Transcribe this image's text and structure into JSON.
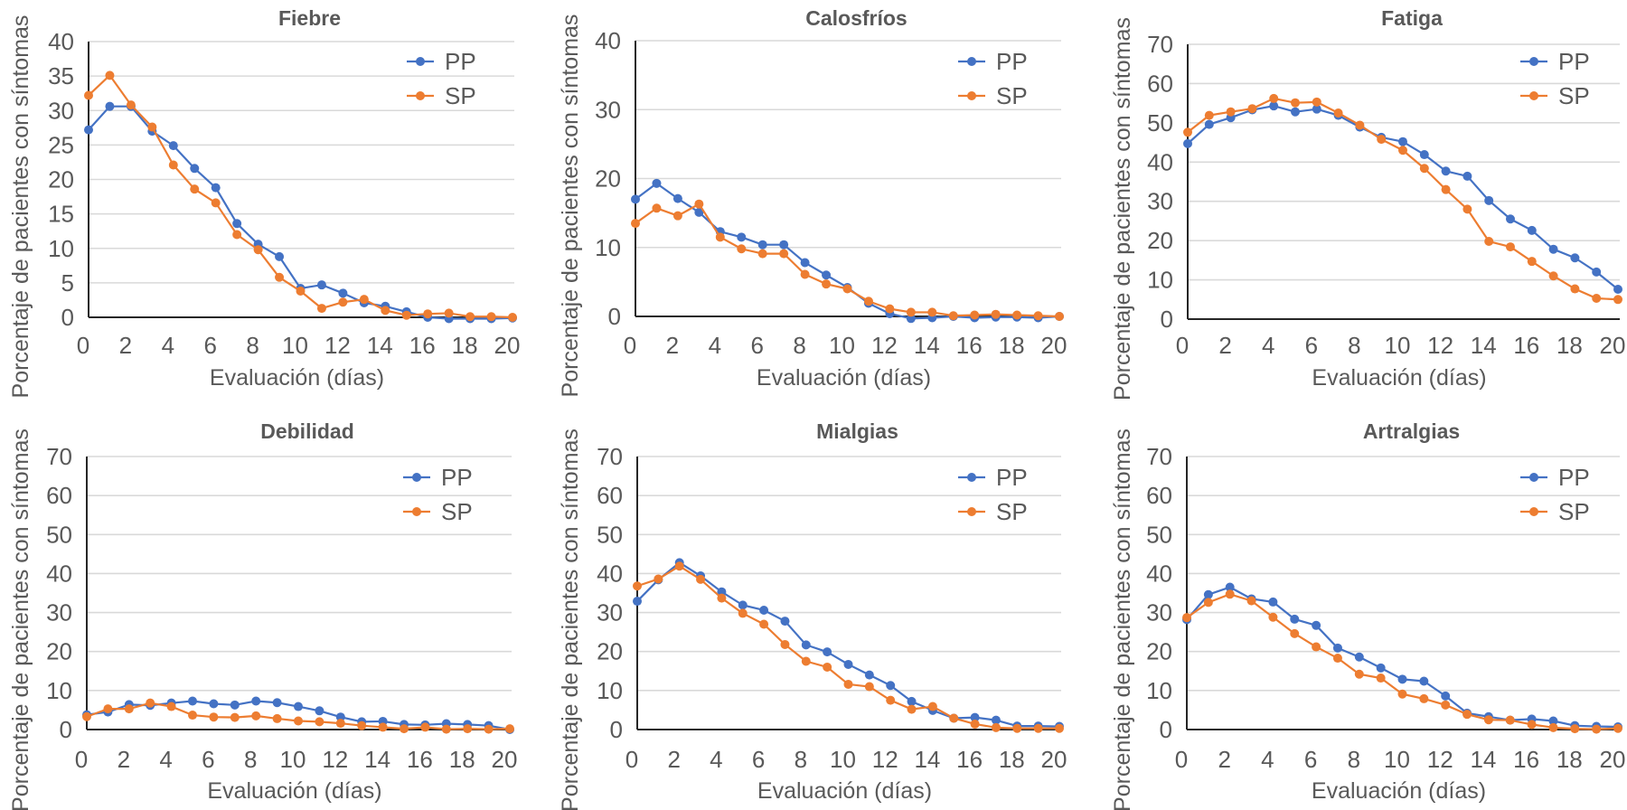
{
  "figure": {
    "ylabel": "Porcentaje de pacientes con síntomas",
    "xlabel": "Evaluación (días)",
    "colors": {
      "PP": "#4472C4",
      "SP": "#ED7D31",
      "text": "#595959",
      "grid": "#D9D9D9",
      "axis": "#262626"
    }
  },
  "chart_data": [
    {
      "type": "line",
      "title": "Fiebre",
      "xlabel": "Evaluación (días)",
      "ylabel": "Porcentaje de pacientes con síntomas",
      "x": [
        0,
        1,
        2,
        3,
        4,
        5,
        6,
        7,
        8,
        9,
        10,
        11,
        12,
        13,
        14,
        15,
        16,
        17,
        18,
        19,
        20
      ],
      "xticks": [
        0,
        2,
        4,
        6,
        8,
        10,
        12,
        14,
        16,
        18,
        20
      ],
      "xlim": [
        0,
        20
      ],
      "ylim": [
        0,
        40
      ],
      "yticks": [
        0,
        5,
        10,
        15,
        20,
        25,
        30,
        35,
        40
      ],
      "grid": true,
      "legend": "top-right",
      "series": [
        {
          "name": "PP",
          "values": [
            27.2,
            30.6,
            30.6,
            27.0,
            24.9,
            21.6,
            18.8,
            13.6,
            10.6,
            8.8,
            4.2,
            4.7,
            3.5,
            2.1,
            1.6,
            0.8,
            0.0,
            -0.2,
            -0.2,
            -0.2,
            -0.1
          ]
        },
        {
          "name": "SP",
          "values": [
            32.2,
            35.1,
            30.8,
            27.6,
            22.1,
            18.6,
            16.6,
            12.0,
            9.8,
            5.8,
            3.8,
            1.3,
            2.2,
            2.6,
            1.0,
            0.3,
            0.5,
            0.6,
            0.1,
            0.1,
            0.0
          ]
        }
      ]
    },
    {
      "type": "line",
      "title": "Calosfríos",
      "xlabel": "Evaluación (días)",
      "ylabel": "Porcentaje de pacientes con síntomas",
      "x": [
        0,
        1,
        2,
        3,
        4,
        5,
        6,
        7,
        8,
        9,
        10,
        11,
        12,
        13,
        14,
        15,
        16,
        17,
        18,
        19,
        20
      ],
      "xticks": [
        0,
        2,
        4,
        6,
        8,
        10,
        12,
        14,
        16,
        18,
        20
      ],
      "xlim": [
        0,
        20
      ],
      "ylim": [
        0,
        40
      ],
      "yticks": [
        0,
        10,
        20,
        30,
        40
      ],
      "grid": true,
      "legend": "top-right",
      "series": [
        {
          "name": "PP",
          "values": [
            17.0,
            19.3,
            17.1,
            15.1,
            12.3,
            11.5,
            10.4,
            10.4,
            7.8,
            6.0,
            4.2,
            1.9,
            0.4,
            -0.3,
            -0.2,
            0.0,
            -0.2,
            -0.1,
            -0.1,
            -0.2,
            0.0
          ]
        },
        {
          "name": "SP",
          "values": [
            13.5,
            15.7,
            14.6,
            16.3,
            11.5,
            9.8,
            9.1,
            9.1,
            6.1,
            4.7,
            4.0,
            2.2,
            1.1,
            0.6,
            0.6,
            0.1,
            0.2,
            0.3,
            0.2,
            0.1,
            0.0
          ]
        }
      ]
    },
    {
      "type": "line",
      "title": "Fatiga",
      "xlabel": "Evaluación (días)",
      "ylabel": "Porcentaje de pacientes con síntomas",
      "x": [
        0,
        1,
        2,
        3,
        4,
        5,
        6,
        7,
        8,
        9,
        10,
        11,
        12,
        13,
        14,
        15,
        16,
        17,
        18,
        19,
        20
      ],
      "xticks": [
        0,
        2,
        4,
        6,
        8,
        10,
        12,
        14,
        16,
        18,
        20
      ],
      "xlim": [
        0,
        20
      ],
      "ylim": [
        0,
        70
      ],
      "yticks": [
        0,
        10,
        20,
        30,
        40,
        50,
        60,
        70
      ],
      "grid": true,
      "legend": "top-right",
      "series": [
        {
          "name": "PP",
          "values": [
            44.7,
            49.6,
            51.3,
            53.3,
            54.3,
            52.8,
            53.5,
            51.9,
            48.9,
            46.3,
            45.2,
            41.9,
            37.7,
            36.4,
            30.2,
            25.5,
            22.6,
            17.8,
            15.6,
            12.0,
            7.6
          ]
        },
        {
          "name": "SP",
          "values": [
            47.6,
            51.9,
            52.8,
            53.6,
            56.2,
            55.1,
            55.3,
            52.5,
            49.4,
            45.8,
            43.0,
            38.4,
            33.0,
            28.0,
            19.8,
            18.4,
            14.7,
            11.0,
            7.7,
            5.3,
            5.0
          ]
        }
      ]
    },
    {
      "type": "line",
      "title": "Debilidad",
      "xlabel": "Evaluación (días)",
      "ylabel": "Porcentaje de pacientes con síntomas",
      "x": [
        0,
        1,
        2,
        3,
        4,
        5,
        6,
        7,
        8,
        9,
        10,
        11,
        12,
        13,
        14,
        15,
        16,
        17,
        18,
        19,
        20
      ],
      "xticks": [
        0,
        2,
        4,
        6,
        8,
        10,
        12,
        14,
        16,
        18,
        20
      ],
      "xlim": [
        0,
        20
      ],
      "ylim": [
        0,
        70
      ],
      "yticks": [
        0,
        10,
        20,
        30,
        40,
        50,
        60,
        70
      ],
      "grid": true,
      "legend": "top-right",
      "series": [
        {
          "name": "PP",
          "values": [
            3.8,
            4.5,
            6.4,
            6.2,
            6.8,
            7.3,
            6.6,
            6.3,
            7.3,
            6.9,
            5.9,
            4.8,
            3.2,
            2.0,
            2.1,
            1.3,
            1.2,
            1.5,
            1.3,
            1.0,
            0.0
          ]
        },
        {
          "name": "SP",
          "values": [
            3.3,
            5.3,
            5.3,
            6.8,
            5.9,
            3.7,
            3.2,
            3.1,
            3.5,
            2.8,
            2.2,
            2.0,
            1.6,
            1.0,
            0.6,
            0.2,
            0.6,
            0.1,
            0.2,
            0.1,
            0.2
          ]
        }
      ]
    },
    {
      "type": "line",
      "title": "Mialgias",
      "xlabel": "Evaluación (días)",
      "ylabel": "Porcentaje de pacientes con síntomas",
      "x": [
        0,
        1,
        2,
        3,
        4,
        5,
        6,
        7,
        8,
        9,
        10,
        11,
        12,
        13,
        14,
        15,
        16,
        17,
        18,
        19,
        20
      ],
      "xticks": [
        0,
        2,
        4,
        6,
        8,
        10,
        12,
        14,
        16,
        18,
        20
      ],
      "xlim": [
        0,
        20
      ],
      "ylim": [
        0,
        70
      ],
      "yticks": [
        0,
        10,
        20,
        30,
        40,
        50,
        60,
        70
      ],
      "grid": true,
      "legend": "top-right",
      "series": [
        {
          "name": "PP",
          "values": [
            32.9,
            38.4,
            42.8,
            39.4,
            35.3,
            31.9,
            30.6,
            27.8,
            21.7,
            19.9,
            16.7,
            14.0,
            11.3,
            7.2,
            4.9,
            2.9,
            3.1,
            2.4,
            0.9,
            0.9,
            0.8
          ]
        },
        {
          "name": "SP",
          "values": [
            36.8,
            38.6,
            41.9,
            38.5,
            33.7,
            29.8,
            27.0,
            21.8,
            17.5,
            16.0,
            11.6,
            11.0,
            7.5,
            5.2,
            5.9,
            2.9,
            1.4,
            0.5,
            0.3,
            0.3,
            0.3
          ]
        }
      ]
    },
    {
      "type": "line",
      "title": "Artralgias",
      "xlabel": "Evaluación (días)",
      "ylabel": "Porcentaje de pacientes con síntomas",
      "x": [
        0,
        1,
        2,
        3,
        4,
        5,
        6,
        7,
        8,
        9,
        10,
        11,
        12,
        13,
        14,
        15,
        16,
        17,
        18,
        19,
        20
      ],
      "xticks": [
        0,
        2,
        4,
        6,
        8,
        10,
        12,
        14,
        16,
        18,
        20
      ],
      "xlim": [
        0,
        20
      ],
      "ylim": [
        0,
        70
      ],
      "yticks": [
        0,
        10,
        20,
        30,
        40,
        50,
        60,
        70
      ],
      "grid": true,
      "legend": "top-right",
      "series": [
        {
          "name": "PP",
          "values": [
            28.2,
            34.6,
            36.5,
            33.5,
            32.7,
            28.3,
            26.7,
            20.9,
            18.6,
            15.8,
            12.9,
            12.4,
            8.6,
            4.2,
            3.3,
            2.4,
            2.7,
            2.2,
            1.0,
            0.8,
            0.7
          ]
        },
        {
          "name": "SP",
          "values": [
            28.7,
            32.6,
            34.7,
            33.0,
            28.8,
            24.6,
            21.2,
            18.3,
            14.2,
            13.2,
            9.1,
            7.9,
            6.3,
            3.9,
            2.5,
            2.4,
            1.3,
            0.5,
            0.2,
            0.1,
            0.3
          ]
        }
      ]
    }
  ]
}
